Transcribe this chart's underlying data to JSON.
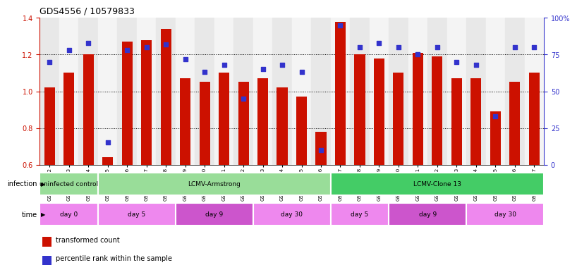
{
  "title": "GDS4556 / 10579833",
  "samples": [
    "GSM1083152",
    "GSM1083153",
    "GSM1083154",
    "GSM1083155",
    "GSM1083156",
    "GSM1083157",
    "GSM1083158",
    "GSM1083159",
    "GSM1083160",
    "GSM1083161",
    "GSM1083162",
    "GSM1083163",
    "GSM1083164",
    "GSM1083165",
    "GSM1083166",
    "GSM1083167",
    "GSM1083168",
    "GSM1083169",
    "GSM1083170",
    "GSM1083171",
    "GSM1083172",
    "GSM1083173",
    "GSM1083174",
    "GSM1083175",
    "GSM1083176",
    "GSM1083177"
  ],
  "bar_heights": [
    1.02,
    1.1,
    1.2,
    0.64,
    1.27,
    1.28,
    1.34,
    1.07,
    1.05,
    1.1,
    1.05,
    1.07,
    1.02,
    0.97,
    0.78,
    1.38,
    1.2,
    1.18,
    1.1,
    1.21,
    1.19,
    1.07,
    1.07,
    0.89,
    1.05,
    1.1
  ],
  "blue_dot_pct": [
    70,
    78,
    83,
    15,
    78,
    80,
    82,
    72,
    63,
    68,
    45,
    65,
    68,
    63,
    10,
    95,
    80,
    83,
    80,
    75,
    80,
    70,
    68,
    33,
    80,
    80
  ],
  "ylim": [
    0.6,
    1.4
  ],
  "yticks_left": [
    0.6,
    0.8,
    1.0,
    1.2,
    1.4
  ],
  "yticks_right": [
    0,
    25,
    50,
    75,
    100
  ],
  "bar_color": "#cc1100",
  "dot_color": "#3333cc",
  "infection_groups": [
    {
      "label": "uninfected control",
      "start": 0,
      "end": 3,
      "color": "#99dd99"
    },
    {
      "label": "LCMV-Armstrong",
      "start": 3,
      "end": 15,
      "color": "#99dd99"
    },
    {
      "label": "LCMV-Clone 13",
      "start": 15,
      "end": 26,
      "color": "#44cc66"
    }
  ],
  "time_groups": [
    {
      "label": "day 0",
      "start": 0,
      "end": 3,
      "color": "#ee88ee"
    },
    {
      "label": "day 5",
      "start": 3,
      "end": 7,
      "color": "#ee88ee"
    },
    {
      "label": "day 9",
      "start": 7,
      "end": 11,
      "color": "#cc55cc"
    },
    {
      "label": "day 30",
      "start": 11,
      "end": 15,
      "color": "#ee88ee"
    },
    {
      "label": "day 5",
      "start": 15,
      "end": 18,
      "color": "#ee88ee"
    },
    {
      "label": "day 9",
      "start": 18,
      "end": 22,
      "color": "#cc55cc"
    },
    {
      "label": "day 30",
      "start": 22,
      "end": 26,
      "color": "#ee88ee"
    }
  ],
  "legend_items": [
    {
      "label": "transformed count",
      "color": "#cc1100"
    },
    {
      "label": "percentile rank within the sample",
      "color": "#3333cc"
    }
  ]
}
